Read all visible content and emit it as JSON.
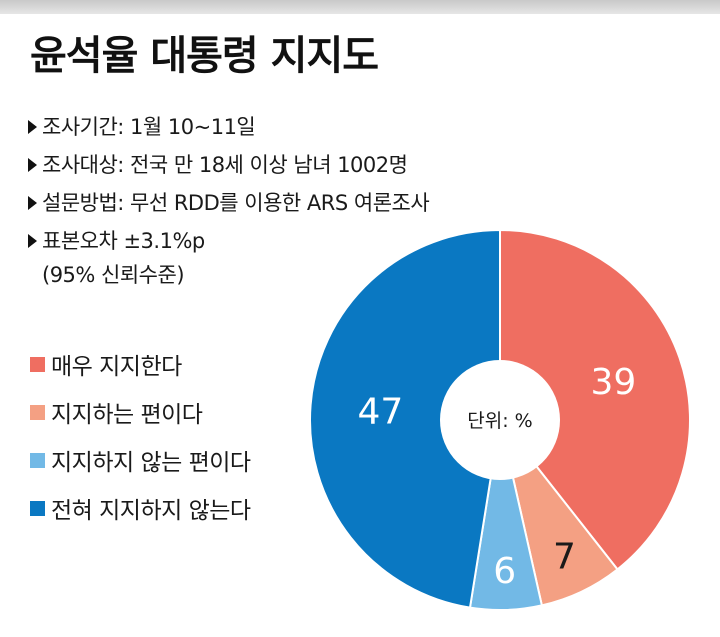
{
  "title": "윤석율 대통령 지지도",
  "survey": {
    "period": "조사기간: 1월 10~11일",
    "target": "조사대상: 전국 만 18세 이상 남녀 1002명",
    "method": "설문방법: 무선 RDD를 이용한 ARS 여론조사",
    "error": "표본오차 ±3.1%p",
    "confidence": "(95% 신뢰수준)"
  },
  "unit_label": "단위: %",
  "chart_data": {
    "type": "pie",
    "title": "윤석율 대통령 지지도",
    "unit": "%",
    "categories": [
      "매우 지지한다",
      "지지하는 편이다",
      "지지하지 않는 편이다",
      "전혀 지지하지 않는다"
    ],
    "values": [
      39,
      7,
      6,
      47
    ],
    "colors": [
      "#ef6e61",
      "#f4a083",
      "#72b9e6",
      "#0a78c2"
    ],
    "label_colors": [
      "#ffffff",
      "#1a1a1a",
      "#ffffff",
      "#ffffff"
    ],
    "donut_hole": true,
    "legend_position": "left"
  }
}
